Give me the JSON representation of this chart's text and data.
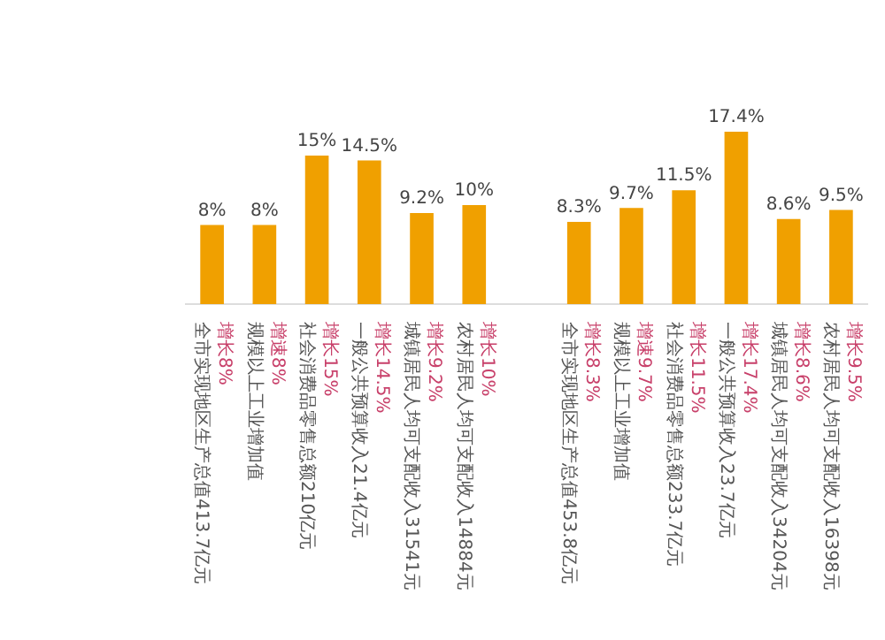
{
  "chart_data": {
    "type": "bar",
    "categories": [
      "全市实现地区生产总值413.7亿元",
      "规模以上工业增加值",
      "社会消费品零售总额210亿元",
      "一般公共预算收入21.4亿元",
      "城镇居民人均可支配收入31541元",
      "农村居民人均可支配收入14884元",
      null,
      "全市实现地区生产总值453.8亿元",
      "规模以上工业增加值",
      "社会消费品零售总额233.7亿元",
      "一般公共预算收入23.7亿元",
      "城镇居民人均可支配收入34204元",
      "农村居民人均可支配收入16398元"
    ],
    "values": [
      8,
      8,
      15,
      14.5,
      9.2,
      10,
      null,
      8.3,
      9.7,
      11.5,
      17.4,
      8.6,
      9.5
    ],
    "value_labels": [
      "8%",
      "8%",
      "15%",
      "14.5%",
      "9.2%",
      "10%",
      null,
      "8.3%",
      "9.7%",
      "11.5%",
      "17.4%",
      "8.6%",
      "9.5%"
    ],
    "color": "#f0a000",
    "annotations": [
      "增长8%",
      "增速8%",
      "增长15%",
      "增长14.5%",
      "增长9.2%",
      "增长10%",
      "增长8.3%",
      "增速9.7%",
      "增长11.5%",
      "增长17.4%",
      "增长8.6%",
      "增长9.5%"
    ],
    "grid": false,
    "legend": false
  }
}
